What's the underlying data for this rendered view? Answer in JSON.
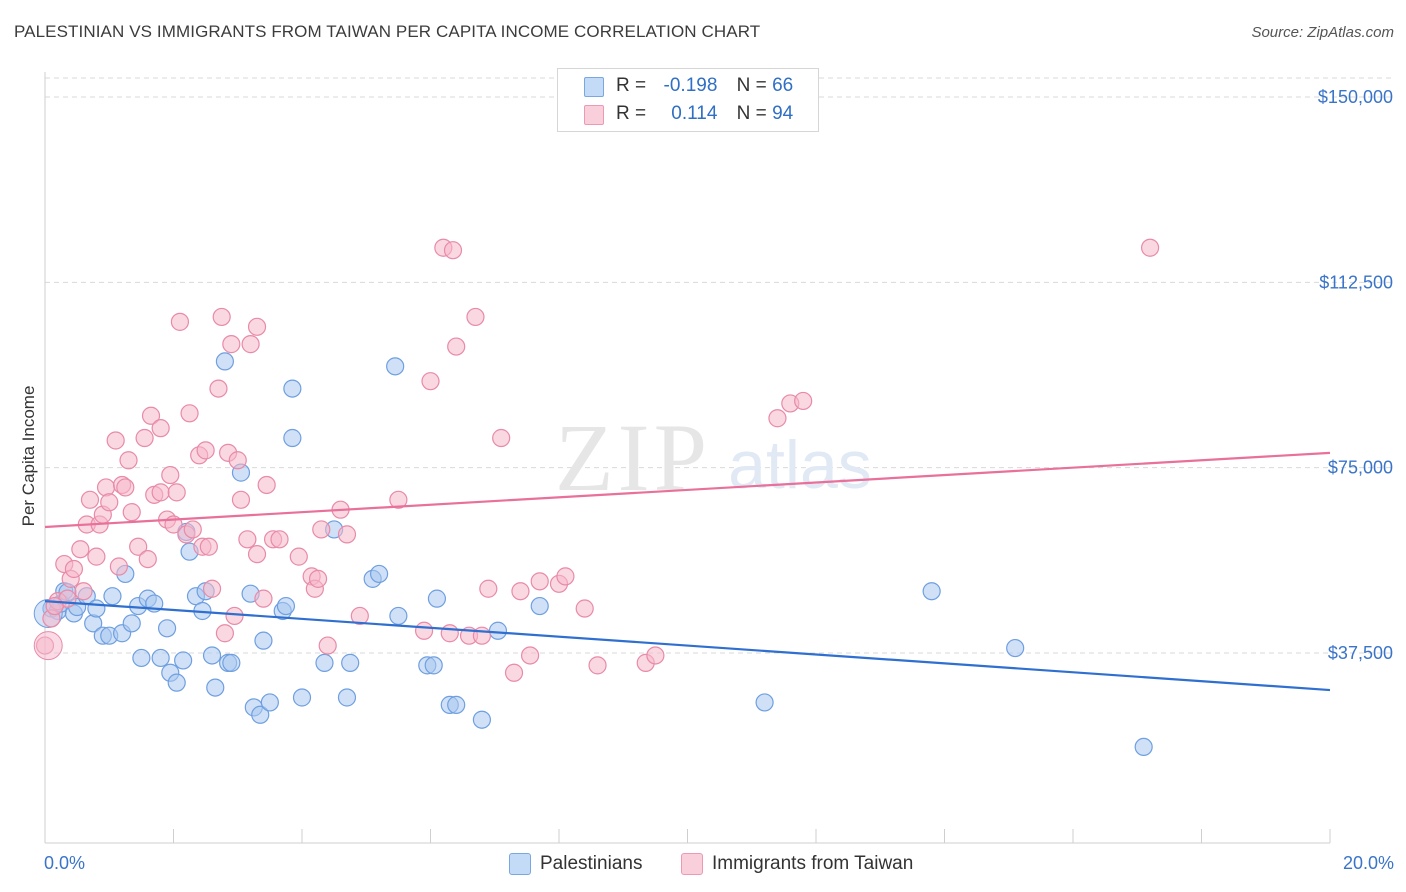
{
  "title": "PALESTINIAN VS IMMIGRANTS FROM TAIWAN PER CAPITA INCOME CORRELATION CHART",
  "source": "Source: ZipAtlas.com",
  "watermark": {
    "zip": "ZIP",
    "atlas": "atlas"
  },
  "legend": {
    "rows": [
      {
        "r_label": "R =",
        "r_value": "-0.198",
        "n_label": "N =",
        "n_value": "66",
        "color": "#a9c8f0"
      },
      {
        "r_label": "R =",
        "r_value": "0.114",
        "n_label": "N =",
        "n_value": "94",
        "color": "#f5b8cb"
      }
    ]
  },
  "bottom_legend": {
    "items": [
      {
        "label": "Palestinians",
        "color": "#a9c8f0"
      },
      {
        "label": "Immigrants from Taiwan",
        "color": "#f5b8cb"
      }
    ]
  },
  "colors": {
    "blue_fill": "#a9c8f0",
    "blue_stroke": "#6f9fe0",
    "blue_line": "#2f6fd0",
    "pink_fill": "#f5b8cb",
    "pink_stroke": "#e88aa8",
    "pink_line": "#e8709a",
    "axis_label": "#3a74c9",
    "grid": "#d9d9d9"
  },
  "chart_data": {
    "type": "scatter",
    "title": "PALESTINIAN VS IMMIGRANTS FROM TAIWAN PER CAPITA INCOME CORRELATION CHART",
    "ylabel": "Per Capita Income",
    "xlabel": "",
    "xlim": [
      0,
      20
    ],
    "ylim": [
      0,
      155000
    ],
    "x_tick_labels": [
      "0.0%",
      "20.0%"
    ],
    "y_ticks": [
      37500,
      75000,
      112500,
      150000
    ],
    "y_tick_labels": [
      "$37,500",
      "$75,000",
      "$112,500",
      "$150,000"
    ],
    "grid": true,
    "legend_placement": "top-center",
    "series": [
      {
        "name": "Palestinians",
        "r": -0.198,
        "n": 66,
        "trend": {
          "x": [
            0,
            20
          ],
          "y": [
            48000,
            30000
          ]
        },
        "points": [
          [
            0.1,
            46500
          ],
          [
            0.2,
            46000
          ],
          [
            0.25,
            47500
          ],
          [
            0.3,
            50000
          ],
          [
            0.35,
            49800
          ],
          [
            0.45,
            45500
          ],
          [
            0.5,
            46800
          ],
          [
            0.65,
            49000
          ],
          [
            0.75,
            43500
          ],
          [
            0.8,
            46500
          ],
          [
            0.9,
            41000
          ],
          [
            1.0,
            41000
          ],
          [
            1.05,
            49000
          ],
          [
            1.2,
            41500
          ],
          [
            1.25,
            53500
          ],
          [
            1.35,
            43500
          ],
          [
            1.45,
            47000
          ],
          [
            1.5,
            36500
          ],
          [
            1.6,
            48500
          ],
          [
            1.7,
            47500
          ],
          [
            1.8,
            36500
          ],
          [
            1.9,
            42500
          ],
          [
            1.95,
            33500
          ],
          [
            2.05,
            31500
          ],
          [
            2.15,
            36000
          ],
          [
            2.2,
            62000
          ],
          [
            2.25,
            58000
          ],
          [
            2.35,
            49000
          ],
          [
            2.45,
            46000
          ],
          [
            2.5,
            50000
          ],
          [
            2.6,
            37000
          ],
          [
            2.65,
            30500
          ],
          [
            2.8,
            96500
          ],
          [
            2.85,
            35500
          ],
          [
            2.9,
            35500
          ],
          [
            3.05,
            74000
          ],
          [
            3.2,
            49500
          ],
          [
            3.25,
            26500
          ],
          [
            3.35,
            25000
          ],
          [
            3.4,
            40000
          ],
          [
            3.5,
            27500
          ],
          [
            3.7,
            46000
          ],
          [
            3.75,
            47000
          ],
          [
            3.85,
            91000
          ],
          [
            3.85,
            81000
          ],
          [
            4.0,
            28500
          ],
          [
            4.35,
            35500
          ],
          [
            4.5,
            62500
          ],
          [
            4.7,
            28500
          ],
          [
            4.75,
            35500
          ],
          [
            5.1,
            52500
          ],
          [
            5.2,
            53500
          ],
          [
            5.45,
            95500
          ],
          [
            5.5,
            45000
          ],
          [
            5.95,
            35000
          ],
          [
            6.1,
            48500
          ],
          [
            6.05,
            35000
          ],
          [
            6.3,
            27000
          ],
          [
            6.4,
            27000
          ],
          [
            6.8,
            24000
          ],
          [
            7.05,
            42000
          ],
          [
            7.7,
            47000
          ],
          [
            11.2,
            27500
          ],
          [
            13.8,
            50000
          ],
          [
            15.1,
            38500
          ],
          [
            17.1,
            18500
          ]
        ]
      },
      {
        "name": "Immigrants from Taiwan",
        "r": 0.114,
        "n": 94,
        "trend": {
          "x": [
            0,
            20
          ],
          "y": [
            63000,
            78000
          ]
        },
        "points": [
          [
            0.0,
            39000
          ],
          [
            0.1,
            44500
          ],
          [
            0.2,
            48000
          ],
          [
            0.3,
            55500
          ],
          [
            0.35,
            48500
          ],
          [
            0.4,
            52500
          ],
          [
            0.45,
            54500
          ],
          [
            0.55,
            58500
          ],
          [
            0.6,
            50000
          ],
          [
            0.65,
            63500
          ],
          [
            0.7,
            68500
          ],
          [
            0.8,
            57000
          ],
          [
            0.85,
            63500
          ],
          [
            0.9,
            65500
          ],
          [
            0.95,
            71000
          ],
          [
            1.0,
            68000
          ],
          [
            1.1,
            80500
          ],
          [
            1.15,
            55000
          ],
          [
            1.2,
            71500
          ],
          [
            1.25,
            71000
          ],
          [
            1.3,
            76500
          ],
          [
            1.35,
            66000
          ],
          [
            1.45,
            59000
          ],
          [
            1.55,
            81000
          ],
          [
            1.6,
            56500
          ],
          [
            1.65,
            85500
          ],
          [
            1.7,
            69500
          ],
          [
            1.8,
            70000
          ],
          [
            1.8,
            83000
          ],
          [
            1.9,
            64500
          ],
          [
            1.95,
            73500
          ],
          [
            2.0,
            63500
          ],
          [
            2.05,
            70000
          ],
          [
            2.1,
            104500
          ],
          [
            2.2,
            61500
          ],
          [
            2.25,
            86000
          ],
          [
            2.3,
            62500
          ],
          [
            2.4,
            77500
          ],
          [
            2.45,
            59000
          ],
          [
            2.5,
            78500
          ],
          [
            2.55,
            59000
          ],
          [
            2.6,
            50500
          ],
          [
            2.7,
            91000
          ],
          [
            2.75,
            105500
          ],
          [
            2.8,
            41500
          ],
          [
            2.85,
            78000
          ],
          [
            2.9,
            100000
          ],
          [
            2.95,
            45000
          ],
          [
            3.0,
            76500
          ],
          [
            3.05,
            68500
          ],
          [
            3.15,
            60500
          ],
          [
            3.2,
            100000
          ],
          [
            3.3,
            57500
          ],
          [
            3.3,
            103500
          ],
          [
            3.4,
            48500
          ],
          [
            3.45,
            71500
          ],
          [
            3.55,
            60500
          ],
          [
            3.65,
            60500
          ],
          [
            3.95,
            57000
          ],
          [
            4.15,
            53000
          ],
          [
            4.2,
            50500
          ],
          [
            4.25,
            52500
          ],
          [
            4.3,
            62500
          ],
          [
            4.4,
            39000
          ],
          [
            4.6,
            66500
          ],
          [
            4.7,
            61500
          ],
          [
            4.9,
            45000
          ],
          [
            5.5,
            68500
          ],
          [
            5.9,
            42000
          ],
          [
            6.0,
            92500
          ],
          [
            6.2,
            119500
          ],
          [
            6.3,
            41500
          ],
          [
            6.35,
            119000
          ],
          [
            6.4,
            99500
          ],
          [
            6.6,
            41000
          ],
          [
            6.7,
            105500
          ],
          [
            6.8,
            41000
          ],
          [
            6.9,
            50500
          ],
          [
            7.1,
            81000
          ],
          [
            7.3,
            33500
          ],
          [
            7.4,
            50000
          ],
          [
            7.55,
            37000
          ],
          [
            7.7,
            52000
          ],
          [
            8.0,
            51500
          ],
          [
            8.1,
            53000
          ],
          [
            8.4,
            46500
          ],
          [
            8.6,
            35000
          ],
          [
            9.35,
            35500
          ],
          [
            9.5,
            37000
          ],
          [
            11.4,
            85000
          ],
          [
            11.6,
            88000
          ],
          [
            11.8,
            88500
          ],
          [
            17.2,
            119500
          ],
          [
            0.15,
            47000
          ]
        ]
      }
    ]
  }
}
